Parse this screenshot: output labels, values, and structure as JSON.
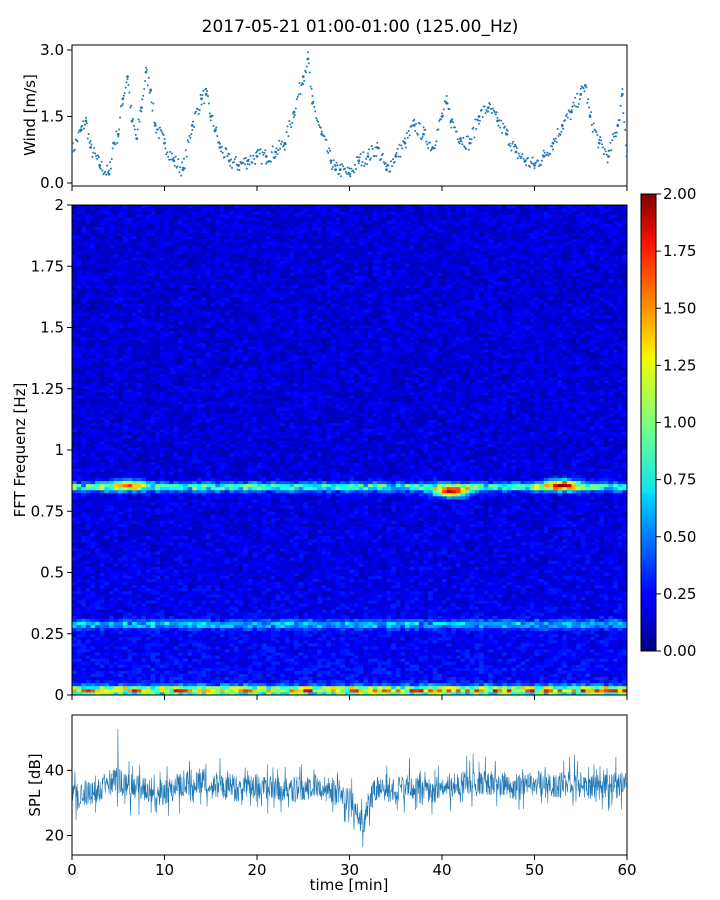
{
  "figure": {
    "title": "2017-05-21 01:00-01:00 (125.00_Hz)"
  },
  "chart_data": [
    {
      "type": "scatter",
      "panel": "wind",
      "title": "",
      "xlabel": "",
      "ylabel": "Wind [m/s]",
      "xlim": [
        0,
        60
      ],
      "ylim": [
        0,
        3.0
      ],
      "yticks": [
        0.0,
        1.5,
        3.0
      ],
      "ytick_labels": [
        "0.0",
        "1.5",
        "3.0"
      ],
      "marker_color": "#1f77b4",
      "series": [
        {
          "x": [
            0,
            1,
            1.5,
            2,
            3,
            4,
            4.5,
            5,
            5.5,
            6,
            6.5,
            7,
            7.5,
            8,
            8.5,
            9,
            10,
            11,
            12,
            13,
            14,
            14.5,
            15,
            15.5,
            16,
            17,
            18,
            19,
            20,
            21,
            22,
            23,
            24,
            25,
            25.5,
            26,
            27,
            28,
            28.5,
            29,
            30,
            31,
            32,
            33,
            34,
            35,
            36,
            37,
            38,
            39,
            40,
            40.5,
            41,
            42,
            43,
            44,
            45,
            46,
            47,
            48,
            49,
            50,
            51,
            52,
            53,
            54,
            55,
            55.5,
            56,
            57,
            58,
            59,
            59.5,
            60
          ],
          "y": [
            0.7,
            1.2,
            1.4,
            0.8,
            0.4,
            0.2,
            0.9,
            1.1,
            1.9,
            2.4,
            1.4,
            1.0,
            1.7,
            2.5,
            2.1,
            1.3,
            0.9,
            0.5,
            0.3,
            1.3,
            1.9,
            2.0,
            1.5,
            1.2,
            0.8,
            0.5,
            0.4,
            0.5,
            0.6,
            0.6,
            0.7,
            0.9,
            1.6,
            2.4,
            2.8,
            1.8,
            1.1,
            0.5,
            0.3,
            0.3,
            0.2,
            0.5,
            0.6,
            0.8,
            0.3,
            0.6,
            0.9,
            1.3,
            1.1,
            0.8,
            1.5,
            1.8,
            1.4,
            1.0,
            0.9,
            1.5,
            1.7,
            1.4,
            1.1,
            0.7,
            0.5,
            0.4,
            0.6,
            0.9,
            1.3,
            1.6,
            2.0,
            2.2,
            1.5,
            0.9,
            0.6,
            1.3,
            2.0,
            0.6
          ]
        }
      ]
    },
    {
      "type": "heatmap",
      "panel": "spectrogram",
      "title": "",
      "xlabel": "",
      "ylabel": "FFT Frequenz [Hz]",
      "xlim": [
        0,
        60
      ],
      "ylim": [
        0,
        2
      ],
      "yticks": [
        0,
        0.25,
        0.5,
        0.75,
        1,
        1.25,
        1.5,
        1.75,
        2
      ],
      "ytick_labels": [
        "0",
        "0.25",
        "0.5",
        "0.75",
        "1",
        "1.25",
        "1.5",
        "1.75",
        "2"
      ],
      "colormap": "jet",
      "colorbar": {
        "range": [
          0,
          2.0
        ],
        "ticks": [
          0.0,
          0.25,
          0.5,
          0.75,
          1.0,
          1.25,
          1.5,
          1.75,
          2.0
        ],
        "tick_labels": [
          "0.00",
          "0.25",
          "0.50",
          "0.75",
          "1.00",
          "1.25",
          "1.50",
          "1.75",
          "2.00"
        ]
      },
      "bands": [
        {
          "freq": 0.02,
          "level": 1.2
        },
        {
          "freq": 0.85,
          "level": 0.75
        },
        {
          "freq": 0.29,
          "level": 0.45
        }
      ],
      "hotspots": [
        {
          "time": 41,
          "freq": 0.83,
          "level": 1.4
        },
        {
          "time": 53,
          "freq": 0.86,
          "level": 1.3
        },
        {
          "time": 6,
          "freq": 0.86,
          "level": 0.9
        }
      ]
    },
    {
      "type": "line",
      "panel": "spl",
      "title": "",
      "xlabel": "time [min]",
      "ylabel": "SPL [dB]",
      "xlim": [
        0,
        60
      ],
      "ylim": [
        14,
        57
      ],
      "xticks": [
        0,
        10,
        20,
        30,
        40,
        50,
        60
      ],
      "xtick_labels": [
        "0",
        "10",
        "20",
        "30",
        "40",
        "50",
        "60"
      ],
      "yticks": [
        20,
        40
      ],
      "ytick_labels": [
        "20",
        "40"
      ],
      "line_color": "#1f77b4",
      "series": [
        {
          "x": [
            0,
            2,
            4,
            5,
            6,
            8,
            10,
            12,
            14,
            16,
            18,
            20,
            22,
            24,
            26,
            28,
            29,
            30,
            31,
            31.5,
            32,
            33,
            34,
            36,
            38,
            40,
            42,
            44,
            46,
            48,
            50,
            52,
            54,
            56,
            58,
            60
          ],
          "mean": [
            32,
            33,
            36,
            37,
            35,
            34,
            33,
            36,
            37,
            35,
            34,
            35,
            34,
            34,
            35,
            34,
            33,
            31,
            26,
            22,
            30,
            35,
            34,
            35,
            33,
            35,
            36,
            36,
            36,
            35,
            36,
            35,
            36,
            35,
            35,
            36
          ],
          "low": [
            24,
            25,
            27,
            28,
            26,
            25,
            25,
            27,
            28,
            27,
            26,
            27,
            26,
            26,
            27,
            26,
            25,
            23,
            19,
            16,
            21,
            27,
            26,
            27,
            25,
            27,
            28,
            28,
            28,
            27,
            28,
            27,
            28,
            27,
            27,
            28
          ],
          "high": [
            40,
            41,
            46,
            56,
            44,
            42,
            41,
            43,
            46,
            44,
            42,
            43,
            42,
            42,
            43,
            42,
            41,
            40,
            36,
            31,
            38,
            44,
            42,
            45,
            42,
            45,
            47,
            46,
            46,
            44,
            45,
            44,
            47,
            44,
            44,
            45
          ]
        }
      ]
    }
  ]
}
